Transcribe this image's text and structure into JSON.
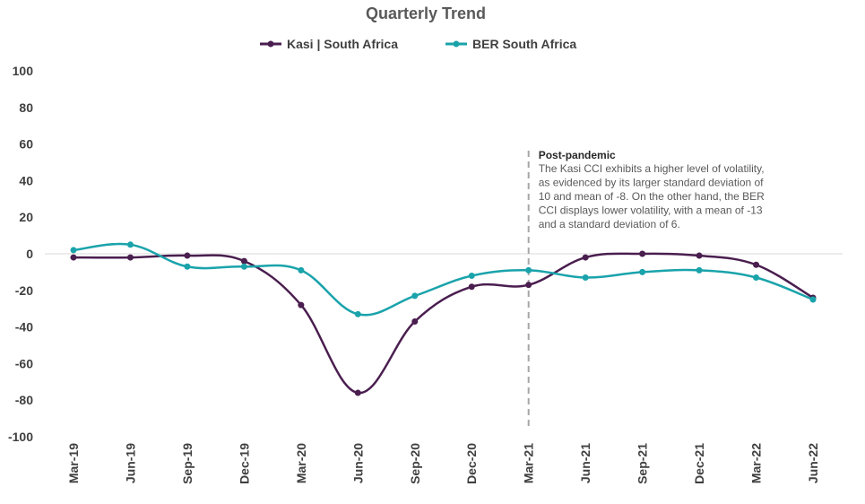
{
  "chart_data": {
    "type": "line",
    "title": "Quarterly Trend",
    "categories": [
      "Mar-19",
      "Jun-19",
      "Sep-19",
      "Dec-19",
      "Mar-20",
      "Jun-20",
      "Sep-20",
      "Dec-20",
      "Mar-21",
      "Jun-21",
      "Sep-21",
      "Dec-21",
      "Mar-22",
      "Jun-22"
    ],
    "ylim": [
      -100,
      100
    ],
    "yticks": [
      100,
      80,
      60,
      40,
      20,
      0,
      -20,
      -40,
      -60,
      -80,
      -100
    ],
    "grid": false,
    "legend": "top",
    "series": [
      {
        "name": "Kasi | South Africa",
        "color": "#4a1e4f",
        "values": [
          -2,
          -2,
          -1,
          -4,
          -28,
          -76,
          -37,
          -18,
          -17,
          -2,
          0,
          -1,
          -6,
          -24
        ]
      },
      {
        "name": "BER South Africa",
        "color": "#1aa3ab",
        "values": [
          2,
          5,
          -7,
          -7,
          -9,
          -33,
          -23,
          -12,
          -9,
          -13,
          -10,
          -9,
          -13,
          -25
        ]
      }
    ],
    "annotation": {
      "category": "Mar-21",
      "title": "Post-pandemic",
      "lines": [
        "The Kasi CCI exhibits a higher level of volatility,",
        "as evidenced by its larger standard deviation of",
        "10 and mean of -8. On the other hand, the BER",
        "CCI displays lower volatility, with a mean of -13",
        "and a standard deviation of 6."
      ]
    }
  }
}
